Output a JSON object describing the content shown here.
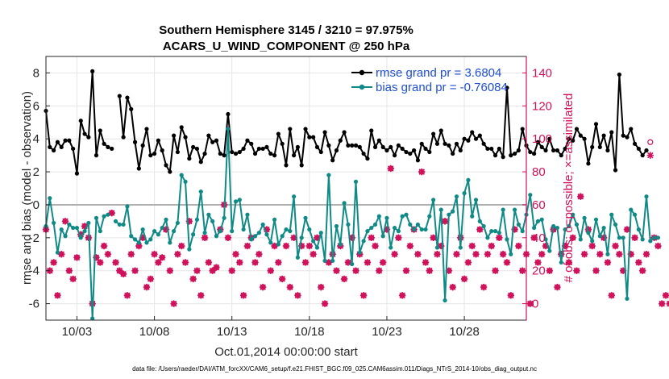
{
  "chart_data": {
    "type": "line",
    "title_line1": "Southern Hemisphere 3145 / 3210 = 97.975%",
    "title_line2": "ACARS_U_WIND_COMPONENT @ 250 hPa",
    "xlabel": "Oct.01,2014 00:00:00 start",
    "ylabel": "rmse and bias (model - observation)",
    "ylabel_right": "# of obs: o=possible; ×=assimilated",
    "footnote": "data file: /Users/raeder/DAI/ATM_forcXX/CAM6_setup/f.e21.FHIST_BGC.f09_025.CAM6assim.011/Diags_NTrS_2014-10/obs_diag_output.nc",
    "x_range_days": [
      1.0,
      32.0
    ],
    "xticks": [
      {
        "day": 3,
        "label": "10/03"
      },
      {
        "day": 8,
        "label": "10/08"
      },
      {
        "day": 13,
        "label": "10/13"
      },
      {
        "day": 18,
        "label": "10/18"
      },
      {
        "day": 23,
        "label": "10/23"
      },
      {
        "day": 28,
        "label": "10/28"
      }
    ],
    "ylim": [
      -7,
      9
    ],
    "yticks": [
      -6,
      -4,
      -2,
      0,
      2,
      4,
      6,
      8
    ],
    "ylim_right": [
      -10,
      150
    ],
    "yticks_right": [
      0,
      20,
      40,
      60,
      80,
      100,
      120,
      140
    ],
    "zero_line": 0,
    "grid": true,
    "legend_position": "top-right",
    "colors": {
      "rmse": "#000000",
      "bias": "#0f8a87",
      "obs": "#d0105a",
      "legend_text": "#1f4fd1",
      "zero_line": "#b0b0b0"
    },
    "series": [
      {
        "name": "rmse grand pr = 3.6804",
        "axis": "left",
        "color": "#000000",
        "x_start_day": 1.0,
        "x_step_days": 0.25,
        "values": [
          5.7,
          3.5,
          3.3,
          3.8,
          3.5,
          3.9,
          3.9,
          3.4,
          1.9,
          5.1,
          4.3,
          4.1,
          8.1,
          3.0,
          4.5,
          3.7,
          3.5,
          3.4,
          null,
          6.6,
          4.1,
          6.5,
          5.8,
          3.8,
          2.2,
          3.6,
          4.6,
          3.0,
          3.1,
          3.9,
          3.3,
          2.4,
          2.0,
          4.2,
          3.2,
          4.7,
          4.1,
          2.8,
          3.5,
          3.4,
          2.6,
          3.1,
          4.2,
          3.8,
          3.9,
          3.1,
          3.0,
          5.5,
          3.2,
          3.1,
          3.2,
          3.4,
          3.9,
          3.7,
          3.1,
          3.4,
          3.4,
          3.5,
          3.1,
          3.0,
          4.3,
          3.7,
          2.4,
          4.6,
          3.0,
          3.5,
          2.4,
          4.6,
          4.1,
          4.1,
          3.5,
          3.2,
          4.4,
          3.6,
          2.7,
          3.3,
          3.9,
          4.4,
          3.6,
          3.6,
          3.6,
          3.5,
          3.1,
          2.8,
          4.5,
          3.5,
          3.9,
          3.5,
          3.3,
          3.5,
          3.0,
          3.6,
          3.4,
          3.2,
          3.1,
          3.3,
          2.7,
          3.7,
          3.4,
          3.2,
          4.3,
          3.7,
          4.5,
          3.7,
          3.6,
          3.1,
          3.7,
          3.3,
          4.0,
          3.9,
          4.4,
          4.0,
          4.2,
          3.7,
          3.4,
          3.4,
          3.0,
          3.4,
          2.9,
          7.1,
          3.0,
          3.1,
          3.3,
          4.6,
          3.6,
          3.2,
          3.1,
          3.8,
          3.5,
          3.3,
          4.0,
          3.3,
          3.3,
          3.0,
          3.4,
          4.0,
          3.9,
          4.6,
          4.2,
          4.0,
          2.5,
          3.5,
          4.9,
          3.5,
          4.2,
          3.3,
          4.4,
          2.1,
          7.9,
          4.2,
          4.1,
          4.6,
          3.7,
          3.4,
          3.0,
          3.3
        ]
      },
      {
        "name": "bias grand pr = -0.76084",
        "axis": "left",
        "color": "#0f8a87",
        "x_start_day": 1.0,
        "x_step_days": 0.25,
        "values": [
          -1.3,
          0.4,
          -1.1,
          -2.9,
          -1.5,
          -1.9,
          -1.2,
          -1.4,
          -1.4,
          -2.0,
          -1.6,
          -1.1,
          -6.9,
          -0.8,
          -1.6,
          -0.7,
          -0.6,
          null,
          -1.0,
          -1.2,
          -1.2,
          -0.1,
          -1.9,
          -2.1,
          -2.3,
          -1.5,
          -2.3,
          -2.1,
          -1.6,
          -1.8,
          -1.4,
          -0.9,
          -2.3,
          -1.6,
          -1.1,
          1.8,
          1.4,
          -2.7,
          -1.8,
          -0.9,
          0.8,
          -1.7,
          -0.6,
          -1.0,
          -1.9,
          -1.6,
          -0.8,
          4.6,
          -1.6,
          0.2,
          0.3,
          -1.5,
          -0.6,
          -2.1,
          -1.9,
          -1.7,
          -1.2,
          -1.8,
          -2.3,
          -0.9,
          -2.4,
          -1.9,
          -1.5,
          -1.6,
          0.5,
          -3.2,
          -2.0,
          -0.8,
          -1.5,
          -2.2,
          -2.6,
          -1.7,
          -3.4,
          1.8,
          -3.4,
          -1.3,
          -2.4,
          0.1,
          -1.2,
          -3.6,
          1.4,
          -2.9,
          -2.2,
          -1.6,
          -1.4,
          -1.2,
          -0.7,
          -1.9,
          -0.8,
          -2.6,
          -1.4,
          -1.6,
          -0.7,
          -0.6,
          -1.2,
          -1.5,
          -1.2,
          -1.5,
          -1.5,
          -0.7,
          0.3,
          -2.6,
          -0.3,
          -5.8,
          -0.6,
          -0.4,
          0.5,
          -2.6,
          0.7,
          1.5,
          -0.7,
          0.3,
          -1.0,
          -1.3,
          -2.0,
          -1.6,
          -1.6,
          -1.7,
          -0.3,
          -2.1,
          -3.0,
          -0.3,
          -1.2,
          -1.6,
          -0.6,
          0.6,
          -1.4,
          -1.0,
          -0.9,
          -2.1,
          -2.8,
          -1.3,
          -1.4,
          -3.5,
          -1.5,
          -1.3,
          -0.6,
          -1.2,
          -2.1,
          -0.8,
          -1.7,
          -2.2,
          -0.9,
          -1.9,
          -1.4,
          -3.0,
          -0.6,
          -1.2,
          -2.0,
          -2.0,
          -5.7,
          -0.3,
          -0.6,
          -1.5,
          -2.1,
          0.5,
          -2.2,
          -2.0,
          -2.0
        ]
      },
      {
        "name": "obs possible",
        "axis": "right",
        "color": "#d0105a",
        "marker": "o",
        "x_start_day": 1.0,
        "x_step_days": 0.25,
        "values": [
          45,
          20,
          25,
          5,
          30,
          50,
          20,
          15,
          28,
          42,
          47,
          40,
          0,
          28,
          25,
          35,
          30,
          55,
          25,
          20,
          18,
          5,
          30,
          20,
          35,
          40,
          10,
          15,
          30,
          25,
          28,
          45,
          20,
          0,
          30,
          35,
          25,
          50,
          15,
          20,
          5,
          40,
          25,
          20,
          22,
          45,
          60,
          40,
          20,
          30,
          25,
          5,
          35,
          40,
          25,
          30,
          10,
          45,
          20,
          35,
          25,
          15,
          35,
          10,
          40,
          5,
          35,
          25,
          35,
          30,
          40,
          10,
          0,
          25,
          30,
          20,
          35,
          15,
          25,
          40,
          20,
          30,
          5,
          25,
          40,
          35,
          20,
          25,
          45,
          82,
          30,
          40,
          5,
          20,
          35,
          45,
          30,
          80,
          25,
          20,
          40,
          30,
          35,
          50,
          20,
          10,
          30,
          40,
          15,
          25,
          35,
          30,
          45,
          10,
          30,
          35,
          20,
          40,
          30,
          25,
          5,
          45,
          35,
          20,
          30,
          0,
          40,
          25,
          30,
          35,
          20,
          45,
          10,
          30,
          35,
          25,
          40,
          20,
          65,
          30,
          45,
          35,
          20,
          30,
          40,
          25,
          5,
          35,
          30,
          20,
          45,
          30,
          40,
          25,
          20,
          30,
          98,
          40,
          35,
          0,
          5,
          0
        ]
      },
      {
        "name": "obs assimilated",
        "axis": "right",
        "color": "#d0105a",
        "marker": "x",
        "x_start_day": 1.0,
        "x_step_days": 0.25,
        "values": [
          45,
          20,
          25,
          5,
          30,
          50,
          20,
          15,
          28,
          42,
          47,
          40,
          0,
          28,
          25,
          35,
          30,
          55,
          25,
          20,
          18,
          5,
          30,
          20,
          35,
          40,
          10,
          15,
          30,
          25,
          28,
          45,
          20,
          0,
          30,
          35,
          25,
          50,
          15,
          20,
          5,
          40,
          25,
          20,
          22,
          45,
          60,
          40,
          20,
          30,
          25,
          5,
          35,
          40,
          25,
          30,
          10,
          45,
          20,
          35,
          25,
          15,
          35,
          10,
          40,
          5,
          35,
          25,
          35,
          30,
          40,
          10,
          0,
          25,
          30,
          20,
          35,
          15,
          25,
          40,
          20,
          30,
          5,
          25,
          40,
          35,
          20,
          25,
          45,
          82,
          30,
          40,
          5,
          20,
          35,
          45,
          30,
          80,
          25,
          20,
          40,
          30,
          35,
          50,
          20,
          10,
          30,
          40,
          15,
          25,
          35,
          30,
          45,
          10,
          30,
          35,
          20,
          40,
          30,
          25,
          5,
          45,
          35,
          20,
          30,
          0,
          40,
          25,
          30,
          35,
          20,
          45,
          10,
          30,
          35,
          25,
          40,
          20,
          65,
          30,
          45,
          35,
          20,
          30,
          40,
          25,
          5,
          35,
          30,
          20,
          45,
          30,
          40,
          25,
          20,
          30,
          90,
          40,
          35,
          0,
          5,
          0
        ]
      }
    ]
  }
}
